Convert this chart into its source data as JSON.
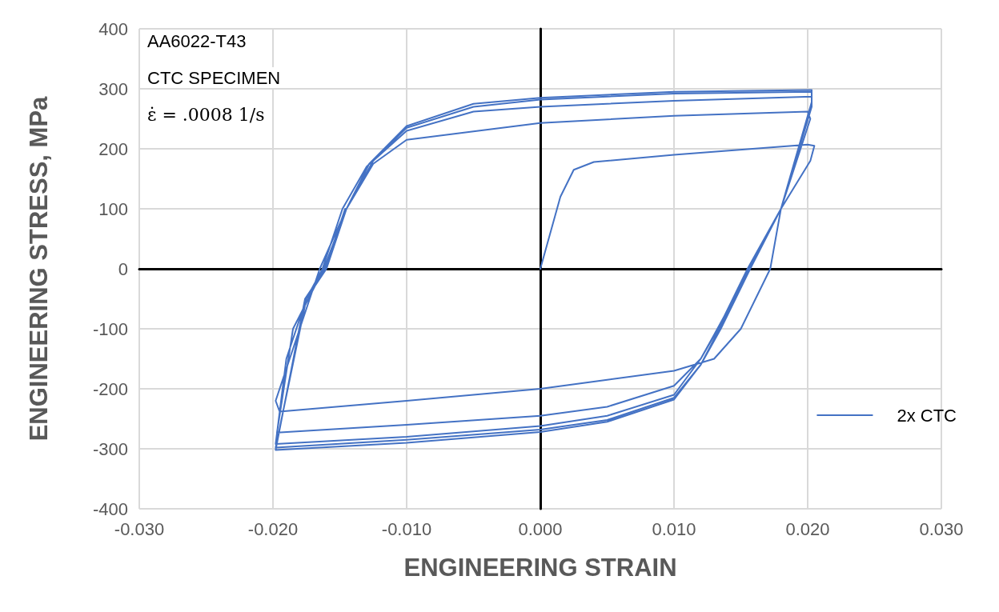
{
  "chart_data": {
    "type": "line",
    "xlabel": "ENGINEERING STRAIN",
    "ylabel": "ENGINEERING STRESS, MPa",
    "annotations": [
      "AA6022-T43",
      "CTC SPECIMEN",
      "ε̇ = .0008 1/s"
    ],
    "xlim": [
      -0.03,
      0.03
    ],
    "xticks": [
      {
        "value": -0.03,
        "label": "-0.030"
      },
      {
        "value": -0.02,
        "label": "-0.020"
      },
      {
        "value": -0.01,
        "label": "-0.010"
      },
      {
        "value": 0,
        "label": "0.000"
      },
      {
        "value": 0.01,
        "label": "0.010"
      },
      {
        "value": 0.02,
        "label": "0.020"
      },
      {
        "value": 0.03,
        "label": "0.030"
      }
    ],
    "ylim": [
      -400,
      400
    ],
    "yticks": [
      -400,
      -300,
      -200,
      -100,
      0,
      100,
      200,
      300,
      400
    ],
    "grid": true,
    "legend": "right",
    "marker": "none",
    "line_style": "solid",
    "series": [
      {
        "name": "2x CTC",
        "color": "#4472c4",
        "x": [
          0,
          0.0015,
          0.0025,
          0.004,
          0.01,
          0.02,
          0.0205,
          0.0202,
          0.018,
          0.0172,
          0.015,
          0.013,
          0.01,
          0.005,
          0,
          -0.01,
          -0.0195,
          -0.0198,
          -0.018,
          -0.0165,
          -0.0145,
          -0.0125,
          -0.01,
          0,
          0.01,
          0.02,
          0.0202,
          0.018,
          0.0157,
          0.013,
          0.012,
          0.01,
          0.005,
          0,
          -0.01,
          -0.0197,
          -0.0185,
          -0.0162,
          -0.0145,
          -0.0125,
          -0.01,
          -0.005,
          0,
          0.01,
          0.0203,
          0.0203,
          0.018,
          0.0155,
          0.0133,
          0.012,
          0.01,
          0.005,
          0,
          -0.01,
          -0.0198,
          -0.019,
          -0.0175,
          -0.0163,
          -0.0148,
          -0.013,
          -0.01,
          -0.005,
          0,
          0.01,
          0.0203,
          0.0203,
          0.018,
          0.0157,
          0.0135,
          0.012,
          0.01,
          0.005,
          0,
          -0.01,
          -0.0198,
          -0.0175,
          -0.016,
          -0.0145,
          -0.0128,
          -0.01,
          -0.005,
          0,
          0.01,
          0.0203,
          0.0203,
          0.018,
          0.0156,
          0.0134,
          0.012,
          0.01,
          0.005,
          0,
          -0.01,
          -0.0198,
          -0.0176,
          -0.0161,
          -0.0146
        ],
        "values": [
          0,
          120,
          165,
          178,
          190,
          207,
          205,
          180,
          100,
          0,
          -100,
          -150,
          -170,
          -185,
          -200,
          -220,
          -238,
          -220,
          -100,
          0,
          100,
          175,
          215,
          243,
          255,
          262,
          250,
          100,
          0,
          -110,
          -150,
          -195,
          -230,
          -245,
          -260,
          -273,
          -100,
          0,
          100,
          180,
          230,
          262,
          270,
          280,
          287,
          270,
          100,
          0,
          -100,
          -150,
          -210,
          -245,
          -262,
          -280,
          -292,
          -150,
          -50,
          0,
          100,
          170,
          235,
          270,
          282,
          292,
          295,
          275,
          100,
          0,
          -100,
          -160,
          -215,
          -252,
          -268,
          -285,
          -298,
          -50,
          0,
          100,
          175,
          238,
          275,
          285,
          295,
          298,
          278,
          100,
          0,
          -100,
          -160,
          -218,
          -255,
          -272,
          -290,
          -302,
          -50,
          0,
          100
        ]
      }
    ]
  }
}
